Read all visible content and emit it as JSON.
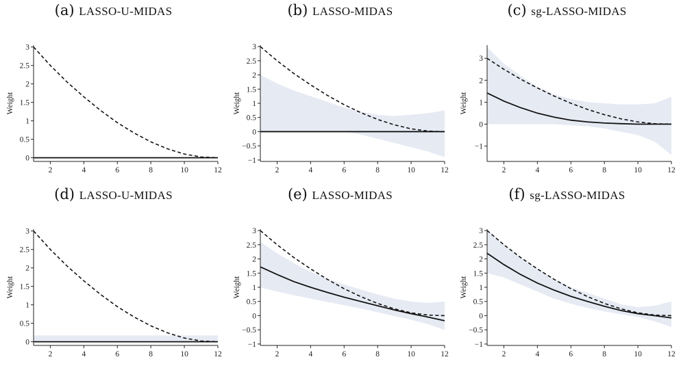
{
  "chart_data": [
    {
      "type": "line",
      "label": "(a)",
      "title": "LASSO-U-MIDAS",
      "ylabel": "Weight",
      "x": [
        1,
        2,
        3,
        4,
        5,
        6,
        7,
        8,
        9,
        10,
        11,
        12
      ],
      "xticks": [
        2,
        4,
        6,
        8,
        10,
        12
      ],
      "yticks": [
        0,
        0.5,
        1,
        1.5,
        2,
        2.5,
        3
      ],
      "ytick_labels": [
        "0",
        "0.5",
        "1",
        "1.5",
        "2",
        "2.5",
        "3"
      ],
      "ylim": [
        -0.1,
        3.05
      ],
      "true_weights": [
        3,
        2.5,
        2.05,
        1.65,
        1.28,
        0.95,
        0.67,
        0.43,
        0.24,
        0.1,
        0.02,
        0
      ],
      "estimate": [
        0,
        0,
        0,
        0,
        0,
        0,
        0,
        0,
        0,
        0,
        0,
        0
      ],
      "band_lower": [
        -0.02,
        -0.02,
        -0.02,
        -0.02,
        -0.02,
        -0.02,
        -0.02,
        -0.02,
        -0.02,
        -0.02,
        -0.02,
        -0.02
      ],
      "band_upper": [
        0.02,
        0.02,
        0.02,
        0.02,
        0.02,
        0.02,
        0.02,
        0.02,
        0.02,
        0.02,
        0.02,
        0.02
      ]
    },
    {
      "type": "line",
      "label": "(b)",
      "title": "LASSO-MIDAS",
      "ylabel": "Weight",
      "x": [
        1,
        2,
        3,
        4,
        5,
        6,
        7,
        8,
        9,
        10,
        11,
        12
      ],
      "xticks": [
        2,
        4,
        6,
        8,
        10,
        12
      ],
      "yticks": [
        -1,
        -0.5,
        0,
        0.5,
        1,
        1.5,
        2,
        2.5,
        3
      ],
      "ytick_labels": [
        "−1",
        "−0.5",
        "0",
        "0.5",
        "1",
        "1.5",
        "2",
        "2.5",
        "3"
      ],
      "ylim": [
        -1.05,
        3.05
      ],
      "true_weights": [
        3,
        2.5,
        2.05,
        1.65,
        1.28,
        0.95,
        0.67,
        0.43,
        0.24,
        0.1,
        0.02,
        0
      ],
      "estimate": [
        0,
        0,
        0,
        0,
        0,
        0,
        0,
        0,
        0,
        0,
        0,
        0
      ],
      "band_lower": [
        0,
        0,
        0,
        0,
        0,
        0,
        -0.1,
        -0.25,
        -0.4,
        -0.55,
        -0.7,
        -0.9
      ],
      "band_upper": [
        2.0,
        1.7,
        1.45,
        1.25,
        1.05,
        0.85,
        0.7,
        0.6,
        0.55,
        0.6,
        0.65,
        0.75
      ]
    },
    {
      "type": "line",
      "label": "(c)",
      "title": "sg-LASSO-MIDAS",
      "ylabel": "Weight",
      "x": [
        1,
        2,
        3,
        4,
        5,
        6,
        7,
        8,
        9,
        10,
        11,
        12
      ],
      "xticks": [
        2,
        4,
        6,
        8,
        10,
        12
      ],
      "yticks": [
        -1,
        0,
        1,
        2,
        3
      ],
      "ytick_labels": [
        "−1",
        "0",
        "1",
        "2",
        "3"
      ],
      "ylim": [
        -1.7,
        3.6
      ],
      "true_weights": [
        3,
        2.5,
        2.05,
        1.65,
        1.28,
        0.95,
        0.67,
        0.43,
        0.24,
        0.1,
        0.02,
        0
      ],
      "estimate": [
        1.42,
        1.05,
        0.75,
        0.5,
        0.32,
        0.18,
        0.1,
        0.05,
        0.02,
        0.0,
        0.0,
        0.0
      ],
      "band_lower": [
        0,
        0,
        0,
        0,
        0,
        -0.05,
        -0.1,
        -0.2,
        -0.35,
        -0.5,
        -0.8,
        -1.4
      ],
      "band_upper": [
        3.5,
        2.75,
        2.2,
        1.7,
        1.35,
        1.15,
        1.0,
        0.95,
        0.9,
        0.9,
        0.95,
        1.25
      ]
    },
    {
      "type": "line",
      "label": "(d)",
      "title": "LASSO-U-MIDAS",
      "ylabel": "Weight",
      "x": [
        1,
        2,
        3,
        4,
        5,
        6,
        7,
        8,
        9,
        10,
        11,
        12
      ],
      "xticks": [
        2,
        4,
        6,
        8,
        10,
        12
      ],
      "yticks": [
        0,
        0.5,
        1,
        1.5,
        2,
        2.5,
        3
      ],
      "ytick_labels": [
        "0",
        "0.5",
        "1",
        "1.5",
        "2",
        "2.5",
        "3"
      ],
      "ylim": [
        -0.1,
        3.05
      ],
      "true_weights": [
        3,
        2.5,
        2.05,
        1.65,
        1.28,
        0.95,
        0.67,
        0.43,
        0.24,
        0.1,
        0.02,
        0
      ],
      "estimate": [
        0,
        0,
        0,
        0,
        0,
        0,
        0,
        0,
        0,
        0,
        0,
        0
      ],
      "band_lower": [
        0,
        0,
        0,
        0,
        0,
        0,
        0,
        0,
        0,
        0,
        0,
        0
      ],
      "band_upper": [
        0.17,
        0.17,
        0.17,
        0.17,
        0.17,
        0.17,
        0.17,
        0.17,
        0.17,
        0.17,
        0.17,
        0.17
      ]
    },
    {
      "type": "line",
      "label": "(e)",
      "title": "LASSO-MIDAS",
      "ylabel": "Weight",
      "x": [
        1,
        2,
        3,
        4,
        5,
        6,
        7,
        8,
        9,
        10,
        11,
        12
      ],
      "xticks": [
        2,
        4,
        6,
        8,
        10,
        12
      ],
      "yticks": [
        -1,
        -0.5,
        0,
        0.5,
        1,
        1.5,
        2,
        2.5,
        3
      ],
      "ytick_labels": [
        "−1",
        "−0.5",
        "0",
        "0.5",
        "1",
        "1.5",
        "2",
        "2.5",
        "3"
      ],
      "ylim": [
        -1.05,
        3.05
      ],
      "true_weights": [
        3,
        2.5,
        2.05,
        1.65,
        1.28,
        0.95,
        0.67,
        0.43,
        0.24,
        0.1,
        0.02,
        0
      ],
      "estimate": [
        1.72,
        1.45,
        1.2,
        1.0,
        0.82,
        0.65,
        0.5,
        0.35,
        0.2,
        0.07,
        -0.05,
        -0.18
      ],
      "band_lower": [
        1.0,
        0.85,
        0.72,
        0.6,
        0.48,
        0.37,
        0.25,
        0.12,
        -0.02,
        -0.15,
        -0.3,
        -0.5
      ],
      "band_upper": [
        2.6,
        2.2,
        1.85,
        1.55,
        1.3,
        1.1,
        0.92,
        0.75,
        0.6,
        0.5,
        0.45,
        0.5
      ]
    },
    {
      "type": "line",
      "label": "(f)",
      "title": "sg-LASSO-MIDAS",
      "ylabel": "Weight",
      "x": [
        1,
        2,
        3,
        4,
        5,
        6,
        7,
        8,
        9,
        10,
        11,
        12
      ],
      "xticks": [
        2,
        4,
        6,
        8,
        10,
        12
      ],
      "yticks": [
        -1,
        -0.5,
        0,
        0.5,
        1,
        1.5,
        2,
        2.5,
        3
      ],
      "ytick_labels": [
        "−1",
        "−0.5",
        "0",
        "0.5",
        "1",
        "1.5",
        "2",
        "2.5",
        "3"
      ],
      "ylim": [
        -1.05,
        3.05
      ],
      "true_weights": [
        3,
        2.5,
        2.05,
        1.65,
        1.28,
        0.95,
        0.67,
        0.43,
        0.24,
        0.1,
        0.02,
        0
      ],
      "estimate": [
        2.2,
        1.8,
        1.45,
        1.15,
        0.9,
        0.68,
        0.5,
        0.33,
        0.18,
        0.07,
        0.0,
        -0.08
      ],
      "band_lower": [
        1.5,
        1.35,
        1.1,
        0.85,
        0.6,
        0.42,
        0.27,
        0.15,
        0.05,
        -0.05,
        -0.2,
        -0.4
      ],
      "band_upper": [
        3.05,
        2.5,
        2.05,
        1.65,
        1.3,
        1.0,
        0.8,
        0.6,
        0.4,
        0.3,
        0.35,
        0.5
      ]
    }
  ],
  "colors": {
    "band": "#e6eaf3",
    "line": "#111111",
    "truth": "#111111",
    "axis": "#222222"
  }
}
